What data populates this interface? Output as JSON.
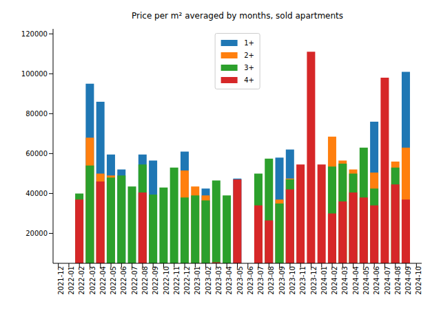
{
  "chart_data": {
    "type": "bar",
    "title": "Price per m² averaged by months, sold apartments",
    "categories": [
      "2021-12",
      "2022-01",
      "2022-02",
      "2022-03",
      "2022-04",
      "2022-05",
      "2022-06",
      "2022-07",
      "2022-08",
      "2022-09",
      "2022-10",
      "2022-11",
      "2022-12",
      "2023-01",
      "2023-02",
      "2023-03",
      "2023-04",
      "2023-05",
      "2023-06",
      "2023-07",
      "2023-08",
      "2023-09",
      "2023-10",
      "2023-11",
      "2023-12",
      "2024-01",
      "2024-02",
      "2024-03",
      "2024-04",
      "2024-05",
      "2024-06",
      "2024-07",
      "2024-08",
      "2024-09",
      "2024-10"
    ],
    "series": [
      {
        "name": "1+",
        "color": "#1f77b4",
        "values": [
          null,
          null,
          null,
          95000,
          86000,
          59500,
          52000,
          null,
          59500,
          56500,
          null,
          null,
          61000,
          null,
          42500,
          null,
          null,
          47500,
          null,
          null,
          null,
          58000,
          62000,
          null,
          null,
          null,
          null,
          null,
          null,
          null,
          76000,
          null,
          null,
          101000,
          null
        ]
      },
      {
        "name": "2+",
        "color": "#ff7f0e",
        "values": [
          null,
          null,
          null,
          68000,
          50000,
          49000,
          null,
          null,
          null,
          null,
          null,
          null,
          51500,
          43500,
          39000,
          null,
          null,
          null,
          null,
          null,
          null,
          37000,
          47500,
          null,
          null,
          null,
          68500,
          56500,
          52000,
          null,
          50500,
          null,
          56000,
          63000,
          null
        ]
      },
      {
        "name": "3+",
        "color": "#2ca02c",
        "values": [
          null,
          null,
          40000,
          54000,
          null,
          48000,
          49000,
          43500,
          54500,
          39500,
          43000,
          53000,
          38000,
          39000,
          36500,
          46500,
          39000,
          null,
          null,
          50000,
          57500,
          35000,
          47000,
          null,
          null,
          null,
          53500,
          55000,
          50000,
          63000,
          42500,
          null,
          53000,
          null,
          null
        ]
      },
      {
        "name": "4+",
        "color": "#d62728",
        "values": [
          null,
          null,
          37000,
          null,
          46000,
          null,
          null,
          null,
          40500,
          null,
          null,
          null,
          null,
          null,
          null,
          5500,
          null,
          47000,
          null,
          34000,
          26500,
          null,
          42000,
          54500,
          111000,
          54500,
          30000,
          36000,
          40500,
          38000,
          34000,
          98000,
          44500,
          37000,
          null
        ]
      }
    ],
    "ylim": [
      5000,
      122500
    ],
    "yticks": [
      20000,
      40000,
      60000,
      80000,
      100000,
      120000
    ],
    "legend": "upper center",
    "stacked": false
  }
}
